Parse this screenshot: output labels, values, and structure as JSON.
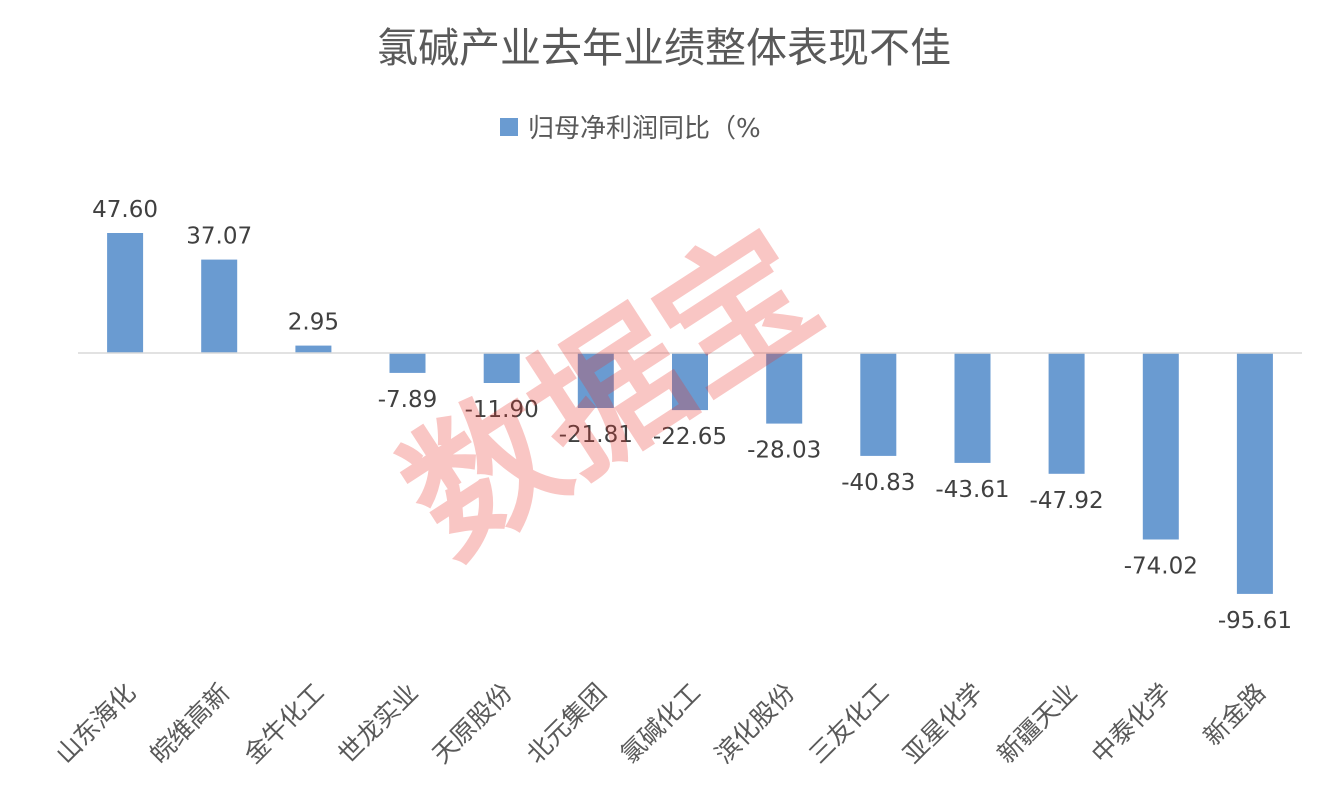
{
  "chart_data": {
    "type": "bar",
    "title": "氯碱产业去年业绩整体表现不佳",
    "categories": [
      "山东海化",
      "皖维高新",
      "金牛化工",
      "世龙实业",
      "天原股份",
      "北元集团",
      "氯碱化工",
      "滨化股份",
      "三友化工",
      "亚星化学",
      "新疆天业",
      "中泰化学",
      "新金路"
    ],
    "series": [
      {
        "name": "归母净利润同比（%",
        "values": [
          47.6,
          37.07,
          2.95,
          -7.89,
          -11.9,
          -21.81,
          -22.65,
          -28.03,
          -40.83,
          -43.61,
          -47.92,
          -74.02,
          -95.61
        ],
        "labels": [
          "47.60",
          "37.07",
          "2.95",
          "-7.89",
          "-11.90",
          "-21.81",
          "-22.65",
          "-28.03",
          "-40.83",
          "-43.61",
          "-47.92",
          "-74.02",
          "-95.61"
        ]
      }
    ],
    "xlabel": "",
    "ylabel": "",
    "ylim": [
      -105,
      55
    ],
    "grid": false,
    "legend_position": "top",
    "bar_color": "#6a9bd1",
    "axis_color": "#d9d9d9"
  },
  "watermark": {
    "text": "数据宝",
    "color": "#e8332a"
  }
}
